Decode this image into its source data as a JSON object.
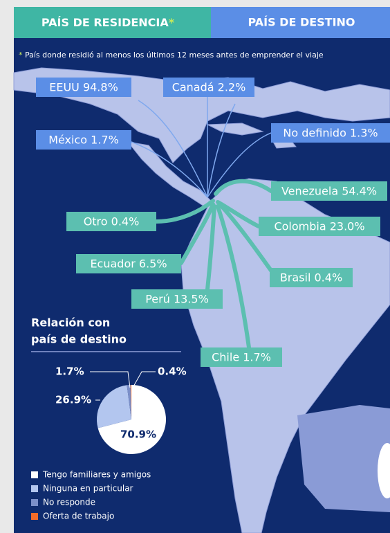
{
  "tabs": {
    "residence": "PAÍS DE RESIDENCIA",
    "residence_mark": "*",
    "destination": "PAÍS DE DESTINO"
  },
  "note": {
    "mark": "*",
    "text": "País donde residió al menos los últimos 12 meses antes de emprender el viaje"
  },
  "destinations": [
    "EEUU 94.8%",
    "Canadá 2.2%",
    "México 1.7%",
    "No definido 1.3%"
  ],
  "origins": [
    "Venezuela 54.4%",
    "Otro 0.4%",
    "Colombia 23.0%",
    "Ecuador 6.5%",
    "Brasil 0.4%",
    "Perú 13.5%",
    "Chile 1.7%"
  ],
  "chart_data": {
    "type": "pie",
    "title": [
      "Relación con",
      "país de destino"
    ],
    "categories": [
      "Tengo familiares y amigos",
      "Ninguna en particular",
      "No responde",
      "Oferta de trabajo"
    ],
    "values": [
      70.9,
      26.9,
      1.7,
      0.4
    ],
    "value_labels": [
      "70.9%",
      "26.9%",
      "1.7%",
      "0.4%"
    ],
    "colors": [
      "#ffffff",
      "#b3c6ef",
      "#7b8fc9",
      "#f26b2a"
    ]
  }
}
